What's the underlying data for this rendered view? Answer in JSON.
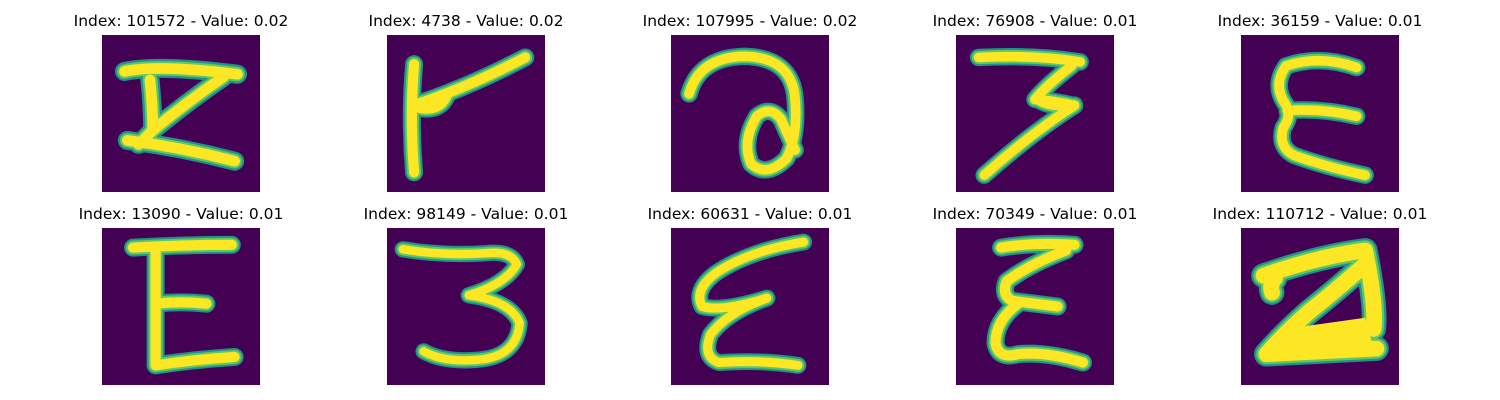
{
  "colors": {
    "background": "#440154",
    "stroke_outer": "#21918c",
    "stroke_mid": "#5ec962",
    "stroke_core": "#fde725"
  },
  "panels": [
    {
      "title": "Index: 101572 - Value: 0.02",
      "image": "handwritten-glyph-Z-like"
    },
    {
      "title": "Index: 4738 - Value: 0.02",
      "image": "handwritten-glyph-r-like"
    },
    {
      "title": "Index: 107995 - Value: 0.02",
      "image": "handwritten-glyph-a-like"
    },
    {
      "title": "Index: 76908 - Value: 0.01",
      "image": "handwritten-glyph-3-like"
    },
    {
      "title": "Index: 36159 - Value: 0.01",
      "image": "handwritten-glyph-E-like"
    },
    {
      "title": "Index: 13090 - Value: 0.01",
      "image": "handwritten-glyph-E-like"
    },
    {
      "title": "Index: 98149 - Value: 0.01",
      "image": "handwritten-glyph-3-like"
    },
    {
      "title": "Index: 60631 - Value: 0.01",
      "image": "handwritten-glyph-epsilon-like"
    },
    {
      "title": "Index: 70349 - Value: 0.01",
      "image": "handwritten-glyph-Z-like"
    },
    {
      "title": "Index: 110712 - Value: 0.01",
      "image": "handwritten-glyph-2-like"
    }
  ]
}
